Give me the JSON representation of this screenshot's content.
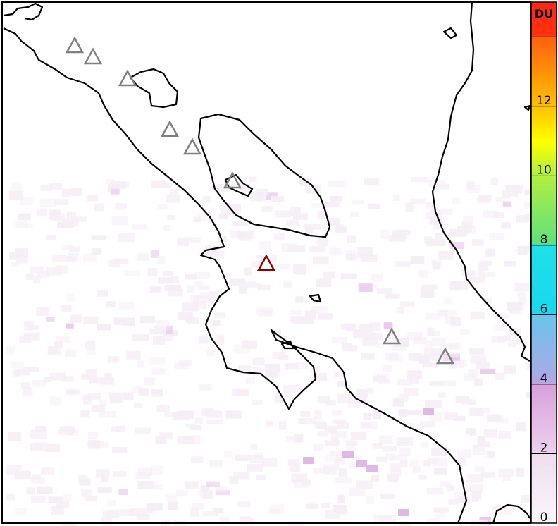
{
  "colorbar": {
    "unit": "DU",
    "ticks": [
      0,
      2,
      4,
      6,
      8,
      10,
      12
    ],
    "tick_labels": [
      "0",
      "2",
      "4",
      "6",
      "8",
      "10",
      "12"
    ],
    "range": [
      0,
      15
    ],
    "color_stops": [
      {
        "value": 0,
        "color": "#fbf6fb"
      },
      {
        "value": 2,
        "color": "#efdcef"
      },
      {
        "value": 2.05,
        "color": "#ecd0ec"
      },
      {
        "value": 4,
        "color": "#d8a0dc"
      },
      {
        "value": 4.05,
        "color": "#b0a8e4"
      },
      {
        "value": 6,
        "color": "#68c4ec"
      },
      {
        "value": 6.05,
        "color": "#18d8f0"
      },
      {
        "value": 8,
        "color": "#20e0e8"
      },
      {
        "value": 8.05,
        "color": "#60e07c"
      },
      {
        "value": 10,
        "color": "#b0f040"
      },
      {
        "value": 11,
        "color": "#ffff00"
      },
      {
        "value": 12,
        "color": "#ffc000"
      },
      {
        "value": 14,
        "color": "#ff6010"
      },
      {
        "value": 14.05,
        "color": "#ff3010"
      },
      {
        "value": 15,
        "color": "#ff2a10"
      }
    ]
  },
  "volcanoes": {
    "inactive_color": "#808080",
    "active_color": "#8b0000",
    "active_count": 1,
    "inactive_count": 8
  }
}
